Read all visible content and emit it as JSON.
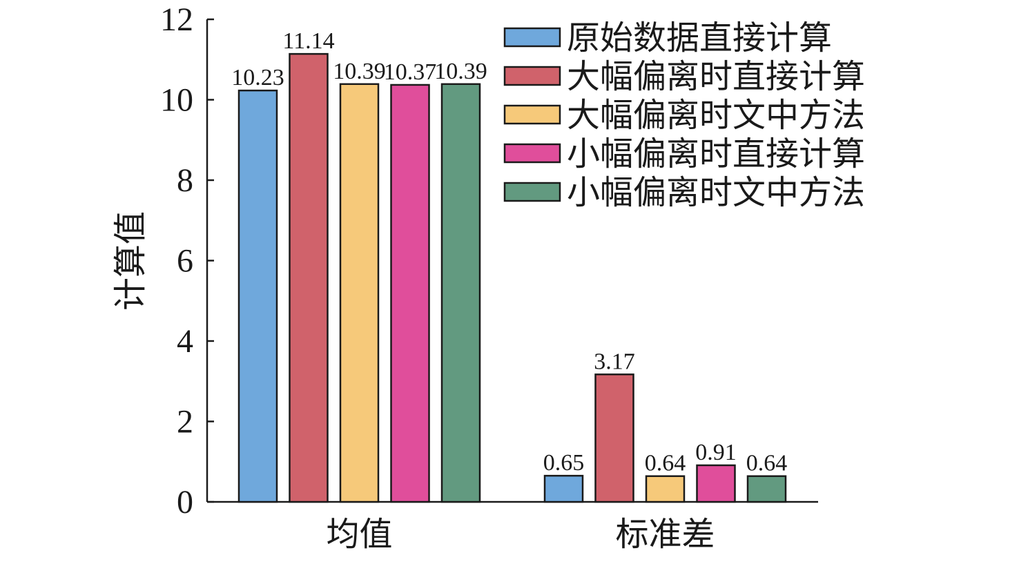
{
  "chart_data": {
    "type": "bar",
    "ylabel": "计算值",
    "xlabel": "",
    "ylim": [
      0,
      12
    ],
    "yticks": [
      0,
      2,
      4,
      6,
      8,
      10,
      12
    ],
    "categories": [
      "均值",
      "标准差"
    ],
    "series": [
      {
        "name": "原始数据直接计算",
        "color": "#6fa8dc",
        "values": [
          10.23,
          0.65
        ],
        "labels": [
          "10.23",
          "0.65"
        ]
      },
      {
        "name": "大幅偏离时直接计算",
        "color": "#d0626b",
        "values": [
          11.14,
          3.17
        ],
        "labels": [
          "11.14",
          "3.17"
        ]
      },
      {
        "name": "大幅偏离时文中方法",
        "color": "#f6c97a",
        "values": [
          10.39,
          0.64
        ],
        "labels": [
          "10.39",
          "0.64"
        ]
      },
      {
        "name": "小幅偏离时直接计算",
        "color": "#e04e9b",
        "values": [
          10.37,
          0.91
        ],
        "labels": [
          "10.37",
          "0.91"
        ]
      },
      {
        "name": "小幅偏离时文中方法",
        "color": "#629a80",
        "values": [
          10.39,
          0.64
        ],
        "labels": [
          "10.39",
          "0.64"
        ]
      }
    ],
    "legend_position": "top-right",
    "grid": false
  }
}
